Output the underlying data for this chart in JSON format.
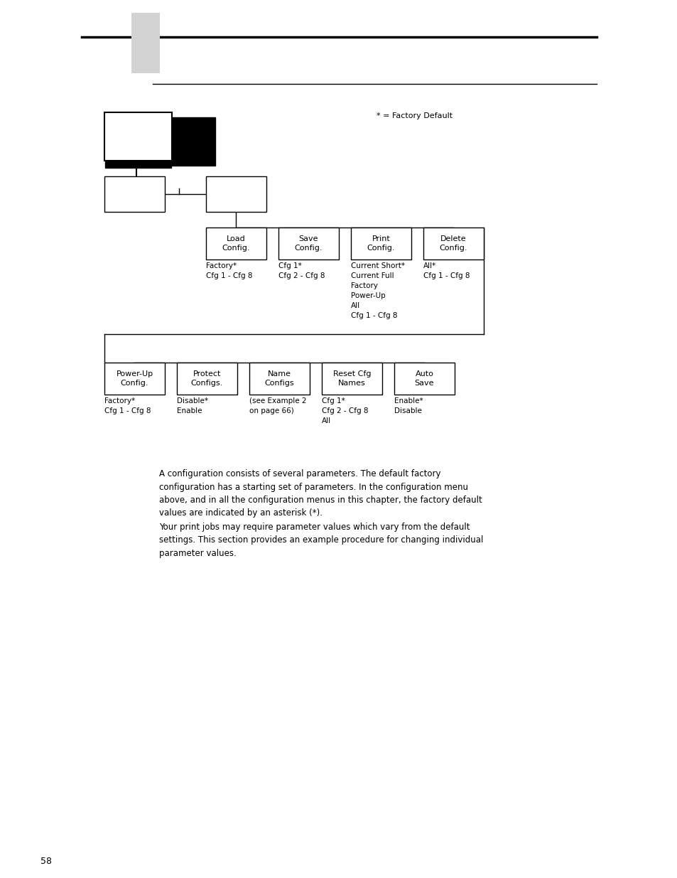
{
  "bg_color": "#ffffff",
  "page_number": "58",
  "factory_default_note": "* = Factory Default",
  "para1": "A configuration consists of several parameters. The default factory\nconfiguration has a starting set of parameters. In the configuration menu\nabove, and in all the configuration menus in this chapter, the factory default\nvalues are indicated by an asterisk (*).",
  "para2": "Your print jobs may require parameter values which vary from the default\nsettings. This section provides an example procedure for changing individual\nparameter values.",
  "top_row_labels": [
    "Load\nConfig.",
    "Save\nConfig.",
    "Print\nConfig.",
    "Delete\nConfig."
  ],
  "top_row_sublabels": [
    "Factory*\nCfg 1 - Cfg 8",
    "Cfg 1*\nCfg 2 - Cfg 8",
    "Current Short*\nCurrent Full\nFactory\nPower-Up\nAll\nCfg 1 - Cfg 8",
    "All*\nCfg 1 - Cfg 8"
  ],
  "bottom_row_labels": [
    "Power-Up\nConfig.",
    "Protect\nConfigs.",
    "Name\nConfigs",
    "Reset Cfg\nNames",
    "Auto\nSave"
  ],
  "bottom_row_sublabels": [
    "Factory*\nCfg 1 - Cfg 8",
    "Disable*\nEnable",
    "(see Example 2\non page 66)",
    "Cfg 1*\nCfg 2 - Cfg 8\nAll",
    "Enable*\nDisable"
  ]
}
